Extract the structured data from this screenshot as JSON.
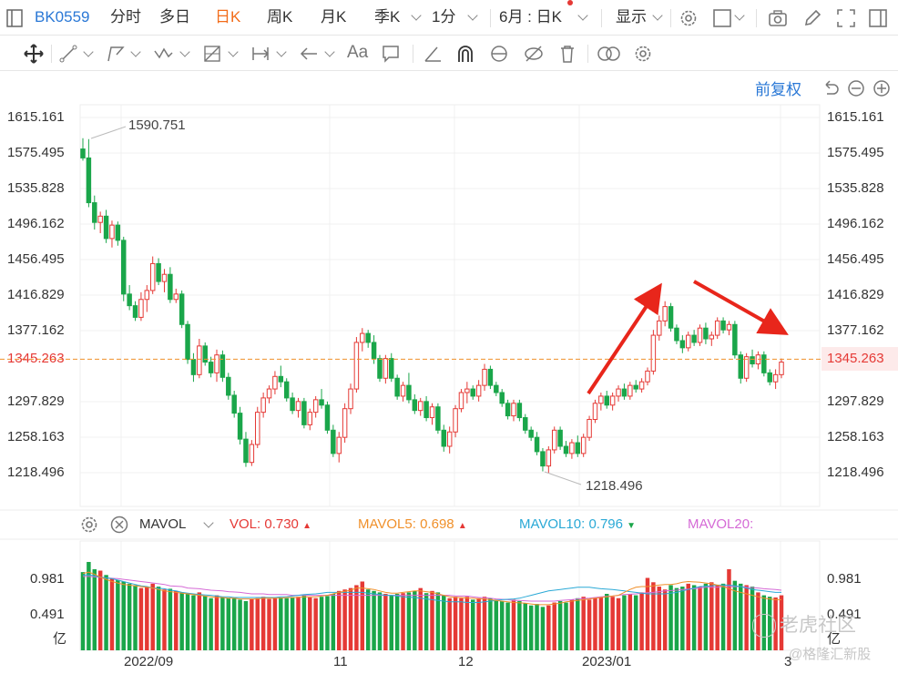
{
  "toolbar": {
    "code": "BK0559",
    "period_items": [
      {
        "label": "分时"
      },
      {
        "label": "多日"
      },
      {
        "label": "日K"
      },
      {
        "label": "周K"
      },
      {
        "label": "月K"
      },
      {
        "label": "季K"
      },
      {
        "label": "1分"
      }
    ],
    "range_label": "6月 : 日K",
    "display_label": "显示"
  },
  "drawing_tools": {
    "text_tool_label": "Aa"
  },
  "adjust_label": "前复权",
  "price_axis": {
    "ticks": [
      "1615.161",
      "1575.495",
      "1535.828",
      "1496.162",
      "1456.495",
      "1416.829",
      "1377.162",
      "1297.829",
      "1258.163",
      "1218.496"
    ],
    "current": "1345.263"
  },
  "annotations": {
    "high": "1590.751",
    "low": "1218.496"
  },
  "volume_legend": {
    "indicator": "MAVOL",
    "vol_label": "VOL:",
    "vol_value": "0.730",
    "mavol5_label": "MAVOL5:",
    "mavol5_value": "0.698",
    "mavol10_label": "MAVOL10:",
    "mavol10_value": "0.796",
    "mavol20_label": "MAVOL20:"
  },
  "volume_axis": {
    "ticks": [
      "0.981",
      "0.491"
    ],
    "unit": "亿"
  },
  "date_axis": [
    "2022/09",
    "11",
    "12",
    "2023/01",
    "3"
  ],
  "watermark": {
    "line1": "老虎社区",
    "line2": "@格隆汇新股"
  },
  "colors": {
    "up": "#e53935",
    "down": "#1aa64a",
    "accent_blue": "#2a78d6",
    "accent_orange": "#f26c1a",
    "mavol5": "#f0902a",
    "mavol10": "#2aa9d6",
    "mavol20": "#d56ad6",
    "current_line": "#f0902a"
  },
  "chart_data": {
    "type": "candlestick",
    "ylim": [
      1190,
      1640
    ],
    "yticks": [
      1218.496,
      1258.163,
      1297.829,
      1377.162,
      1416.829,
      1456.495,
      1496.162,
      1535.828,
      1575.495,
      1615.161
    ],
    "current_price": 1345.263,
    "high_marker": 1590.751,
    "low_marker": 1218.496,
    "candles": [
      [
        1580,
        1592,
        1567,
        1570
      ],
      [
        1570,
        1591,
        1515,
        1520
      ],
      [
        1520,
        1528,
        1490,
        1498
      ],
      [
        1498,
        1510,
        1486,
        1505
      ],
      [
        1505,
        1512,
        1475,
        1480
      ],
      [
        1480,
        1500,
        1470,
        1495
      ],
      [
        1495,
        1499,
        1472,
        1478
      ],
      [
        1478,
        1482,
        1410,
        1418
      ],
      [
        1418,
        1428,
        1400,
        1405
      ],
      [
        1405,
        1410,
        1388,
        1392
      ],
      [
        1392,
        1420,
        1388,
        1412
      ],
      [
        1412,
        1428,
        1398,
        1422
      ],
      [
        1422,
        1460,
        1418,
        1452
      ],
      [
        1452,
        1458,
        1428,
        1432
      ],
      [
        1432,
        1446,
        1420,
        1440
      ],
      [
        1440,
        1448,
        1408,
        1412
      ],
      [
        1412,
        1424,
        1408,
        1418
      ],
      [
        1418,
        1422,
        1380,
        1384
      ],
      [
        1384,
        1388,
        1340,
        1345
      ],
      [
        1345,
        1352,
        1320,
        1328
      ],
      [
        1328,
        1368,
        1324,
        1360
      ],
      [
        1360,
        1364,
        1338,
        1342
      ],
      [
        1342,
        1348,
        1325,
        1330
      ],
      [
        1330,
        1356,
        1320,
        1350
      ],
      [
        1350,
        1355,
        1320,
        1325
      ],
      [
        1325,
        1330,
        1300,
        1305
      ],
      [
        1305,
        1310,
        1280,
        1285
      ],
      [
        1285,
        1292,
        1250,
        1256
      ],
      [
        1256,
        1264,
        1225,
        1230
      ],
      [
        1230,
        1255,
        1226,
        1250
      ],
      [
        1250,
        1292,
        1246,
        1286
      ],
      [
        1286,
        1308,
        1280,
        1302
      ],
      [
        1302,
        1316,
        1296,
        1312
      ],
      [
        1312,
        1332,
        1306,
        1326
      ],
      [
        1326,
        1338,
        1314,
        1320
      ],
      [
        1320,
        1324,
        1298,
        1302
      ],
      [
        1302,
        1308,
        1284,
        1288
      ],
      [
        1288,
        1302,
        1280,
        1298
      ],
      [
        1298,
        1302,
        1268,
        1272
      ],
      [
        1272,
        1290,
        1266,
        1286
      ],
      [
        1286,
        1304,
        1280,
        1300
      ],
      [
        1300,
        1312,
        1290,
        1294
      ],
      [
        1294,
        1298,
        1262,
        1266
      ],
      [
        1266,
        1272,
        1236,
        1240
      ],
      [
        1240,
        1264,
        1230,
        1258
      ],
      [
        1258,
        1296,
        1252,
        1290
      ],
      [
        1290,
        1318,
        1284,
        1312
      ],
      [
        1312,
        1370,
        1308,
        1364
      ],
      [
        1364,
        1380,
        1354,
        1374
      ],
      [
        1374,
        1378,
        1358,
        1364
      ],
      [
        1364,
        1372,
        1340,
        1346
      ],
      [
        1346,
        1350,
        1320,
        1324
      ],
      [
        1324,
        1350,
        1318,
        1346
      ],
      [
        1346,
        1352,
        1320,
        1324
      ],
      [
        1324,
        1328,
        1300,
        1304
      ],
      [
        1304,
        1320,
        1298,
        1316
      ],
      [
        1316,
        1330,
        1296,
        1300
      ],
      [
        1300,
        1306,
        1284,
        1288
      ],
      [
        1288,
        1302,
        1282,
        1298
      ],
      [
        1298,
        1304,
        1276,
        1280
      ],
      [
        1280,
        1296,
        1272,
        1292
      ],
      [
        1292,
        1296,
        1262,
        1266
      ],
      [
        1266,
        1272,
        1242,
        1248
      ],
      [
        1248,
        1270,
        1240,
        1264
      ],
      [
        1264,
        1294,
        1258,
        1290
      ],
      [
        1290,
        1312,
        1286,
        1308
      ],
      [
        1308,
        1320,
        1296,
        1312
      ],
      [
        1312,
        1316,
        1300,
        1304
      ],
      [
        1304,
        1322,
        1298,
        1316
      ],
      [
        1316,
        1340,
        1310,
        1334
      ],
      [
        1334,
        1338,
        1312,
        1316
      ],
      [
        1316,
        1320,
        1304,
        1308
      ],
      [
        1308,
        1312,
        1292,
        1296
      ],
      [
        1296,
        1300,
        1278,
        1282
      ],
      [
        1282,
        1300,
        1276,
        1296
      ],
      [
        1296,
        1300,
        1276,
        1280
      ],
      [
        1280,
        1284,
        1262,
        1266
      ],
      [
        1266,
        1270,
        1254,
        1258
      ],
      [
        1258,
        1264,
        1238,
        1242
      ],
      [
        1242,
        1246,
        1220,
        1226
      ],
      [
        1226,
        1248,
        1218,
        1244
      ],
      [
        1244,
        1270,
        1240,
        1266
      ],
      [
        1266,
        1270,
        1244,
        1248
      ],
      [
        1248,
        1254,
        1236,
        1240
      ],
      [
        1240,
        1256,
        1234,
        1252
      ],
      [
        1252,
        1260,
        1236,
        1240
      ],
      [
        1240,
        1262,
        1236,
        1258
      ],
      [
        1258,
        1282,
        1254,
        1278
      ],
      [
        1278,
        1300,
        1274,
        1296
      ],
      [
        1296,
        1308,
        1288,
        1304
      ],
      [
        1304,
        1310,
        1290,
        1294
      ],
      [
        1294,
        1308,
        1288,
        1304
      ],
      [
        1304,
        1316,
        1298,
        1312
      ],
      [
        1312,
        1318,
        1300,
        1304
      ],
      [
        1304,
        1320,
        1300,
        1316
      ],
      [
        1316,
        1322,
        1308,
        1312
      ],
      [
        1312,
        1324,
        1308,
        1320
      ],
      [
        1320,
        1336,
        1316,
        1332
      ],
      [
        1332,
        1378,
        1328,
        1372
      ],
      [
        1372,
        1394,
        1366,
        1388
      ],
      [
        1388,
        1410,
        1382,
        1404
      ],
      [
        1404,
        1408,
        1376,
        1380
      ],
      [
        1380,
        1384,
        1362,
        1366
      ],
      [
        1366,
        1372,
        1352,
        1358
      ],
      [
        1358,
        1376,
        1354,
        1372
      ],
      [
        1372,
        1378,
        1360,
        1364
      ],
      [
        1364,
        1384,
        1360,
        1380
      ],
      [
        1380,
        1386,
        1362,
        1368
      ],
      [
        1368,
        1376,
        1360,
        1372
      ],
      [
        1372,
        1392,
        1368,
        1388
      ],
      [
        1388,
        1392,
        1374,
        1378
      ],
      [
        1378,
        1388,
        1372,
        1384
      ],
      [
        1384,
        1388,
        1346,
        1350
      ],
      [
        1350,
        1354,
        1318,
        1324
      ],
      [
        1324,
        1352,
        1320,
        1348
      ],
      [
        1348,
        1356,
        1336,
        1340
      ],
      [
        1340,
        1354,
        1334,
        1350
      ],
      [
        1350,
        1354,
        1326,
        1330
      ],
      [
        1330,
        1334,
        1316,
        1320
      ],
      [
        1320,
        1334,
        1312,
        1328
      ],
      [
        1328,
        1346,
        1324,
        1342
      ]
    ],
    "volume": {
      "ylim": [
        0,
        1.25
      ],
      "yticks": [
        0.491,
        0.981
      ],
      "vol_up_down_pattern": "matches candles",
      "values": [
        1.08,
        1.22,
        1.12,
        1.1,
        1.04,
        1.0,
        0.97,
        0.95,
        0.92,
        0.9,
        0.86,
        0.88,
        0.92,
        0.88,
        0.84,
        0.85,
        0.82,
        0.8,
        0.78,
        0.76,
        0.8,
        0.75,
        0.72,
        0.76,
        0.73,
        0.72,
        0.72,
        0.7,
        0.68,
        0.71,
        0.72,
        0.74,
        0.71,
        0.72,
        0.73,
        0.72,
        0.73,
        0.74,
        0.76,
        0.73,
        0.72,
        0.74,
        0.75,
        0.78,
        0.82,
        0.84,
        0.86,
        0.9,
        0.95,
        0.84,
        0.82,
        0.8,
        0.78,
        0.76,
        0.78,
        0.79,
        0.8,
        0.82,
        0.86,
        0.79,
        0.82,
        0.8,
        0.76,
        0.72,
        0.74,
        0.72,
        0.74,
        0.7,
        0.72,
        0.74,
        0.72,
        0.7,
        0.68,
        0.66,
        0.7,
        0.68,
        0.65,
        0.62,
        0.64,
        0.6,
        0.62,
        0.66,
        0.68,
        0.66,
        0.7,
        0.72,
        0.74,
        0.7,
        0.72,
        0.74,
        0.78,
        0.74,
        0.72,
        0.76,
        0.78,
        0.76,
        0.8,
        1.0,
        0.94,
        0.88,
        0.84,
        0.9,
        0.86,
        0.88,
        0.92,
        0.9,
        0.88,
        0.92,
        0.94,
        0.9,
        0.92,
        1.12,
        0.96,
        0.92,
        0.9,
        0.88,
        0.8,
        0.76,
        0.74,
        0.73,
        0.76
      ],
      "mavol5": [
        1.06,
        1.08,
        1.05,
        1.01,
        0.98,
        0.95,
        0.93,
        0.91,
        0.9,
        0.89,
        0.88,
        0.87,
        0.86,
        0.84,
        0.82,
        0.8,
        0.79,
        0.78,
        0.77,
        0.76,
        0.75,
        0.74,
        0.73,
        0.73,
        0.72,
        0.72,
        0.71,
        0.71,
        0.71,
        0.71,
        0.72,
        0.72,
        0.72,
        0.72,
        0.73,
        0.73,
        0.73,
        0.74,
        0.74,
        0.74,
        0.75,
        0.76,
        0.78,
        0.8,
        0.83,
        0.86,
        0.86,
        0.85,
        0.84,
        0.82,
        0.8,
        0.79,
        0.79,
        0.8,
        0.81,
        0.82,
        0.82,
        0.81,
        0.8,
        0.78,
        0.76,
        0.74,
        0.73,
        0.73,
        0.72,
        0.72,
        0.71,
        0.71,
        0.7,
        0.69,
        0.68,
        0.67,
        0.66,
        0.65,
        0.64,
        0.63,
        0.63,
        0.63,
        0.64,
        0.65,
        0.67,
        0.68,
        0.69,
        0.7,
        0.71,
        0.72,
        0.73,
        0.74,
        0.75,
        0.76,
        0.8,
        0.84,
        0.87,
        0.88,
        0.88,
        0.89,
        0.9,
        0.91,
        0.91,
        0.92,
        0.94,
        0.95,
        0.94,
        0.93,
        0.92,
        0.9,
        0.88,
        0.85,
        0.82,
        0.8,
        0.78,
        0.76,
        0.74,
        0.72,
        0.71,
        0.7,
        0.7
      ],
      "mavol10": [
        1.04,
        1.04,
        1.03,
        1.01,
        0.99,
        0.97,
        0.95,
        0.93,
        0.91,
        0.89,
        0.88,
        0.86,
        0.85,
        0.83,
        0.82,
        0.8,
        0.79,
        0.78,
        0.77,
        0.76,
        0.75,
        0.74,
        0.74,
        0.73,
        0.73,
        0.73,
        0.73,
        0.73,
        0.73,
        0.73,
        0.74,
        0.74,
        0.75,
        0.76,
        0.77,
        0.78,
        0.79,
        0.8,
        0.8,
        0.8,
        0.8,
        0.8,
        0.8,
        0.79,
        0.78,
        0.77,
        0.76,
        0.76,
        0.75,
        0.74,
        0.73,
        0.72,
        0.71,
        0.7,
        0.69,
        0.68,
        0.67,
        0.67,
        0.66,
        0.66,
        0.66,
        0.67,
        0.68,
        0.69,
        0.7,
        0.71,
        0.72,
        0.74,
        0.76,
        0.78,
        0.8,
        0.82,
        0.84,
        0.85,
        0.86,
        0.87,
        0.87,
        0.87,
        0.86,
        0.85,
        0.84,
        0.83,
        0.82,
        0.81,
        0.8,
        0.79,
        0.78,
        0.78,
        0.78,
        0.79,
        0.8,
        0.82,
        0.84,
        0.86,
        0.88,
        0.89,
        0.9,
        0.9,
        0.9,
        0.89,
        0.88,
        0.86,
        0.84,
        0.82,
        0.81,
        0.8,
        0.8
      ],
      "mavol20": [
        1.02,
        1.02,
        1.01,
        1.0,
        0.99,
        0.98,
        0.97,
        0.95,
        0.94,
        0.92,
        0.91,
        0.89,
        0.88,
        0.86,
        0.85,
        0.84,
        0.83,
        0.82,
        0.81,
        0.8,
        0.79,
        0.78,
        0.78,
        0.77,
        0.77,
        0.77,
        0.76,
        0.76,
        0.76,
        0.76,
        0.76,
        0.76,
        0.76,
        0.76,
        0.76,
        0.76,
        0.76,
        0.76,
        0.76,
        0.76,
        0.76,
        0.76,
        0.76,
        0.76,
        0.76,
        0.76,
        0.75,
        0.75,
        0.74,
        0.73,
        0.72,
        0.71,
        0.7,
        0.69,
        0.69,
        0.68,
        0.68,
        0.68,
        0.68,
        0.69,
        0.7,
        0.71,
        0.72,
        0.73,
        0.74,
        0.75,
        0.76,
        0.77,
        0.78,
        0.79,
        0.8,
        0.81,
        0.82,
        0.83,
        0.84,
        0.85,
        0.86,
        0.87,
        0.87,
        0.88,
        0.88,
        0.88,
        0.87,
        0.86,
        0.85,
        0.84,
        0.83
      ]
    }
  }
}
